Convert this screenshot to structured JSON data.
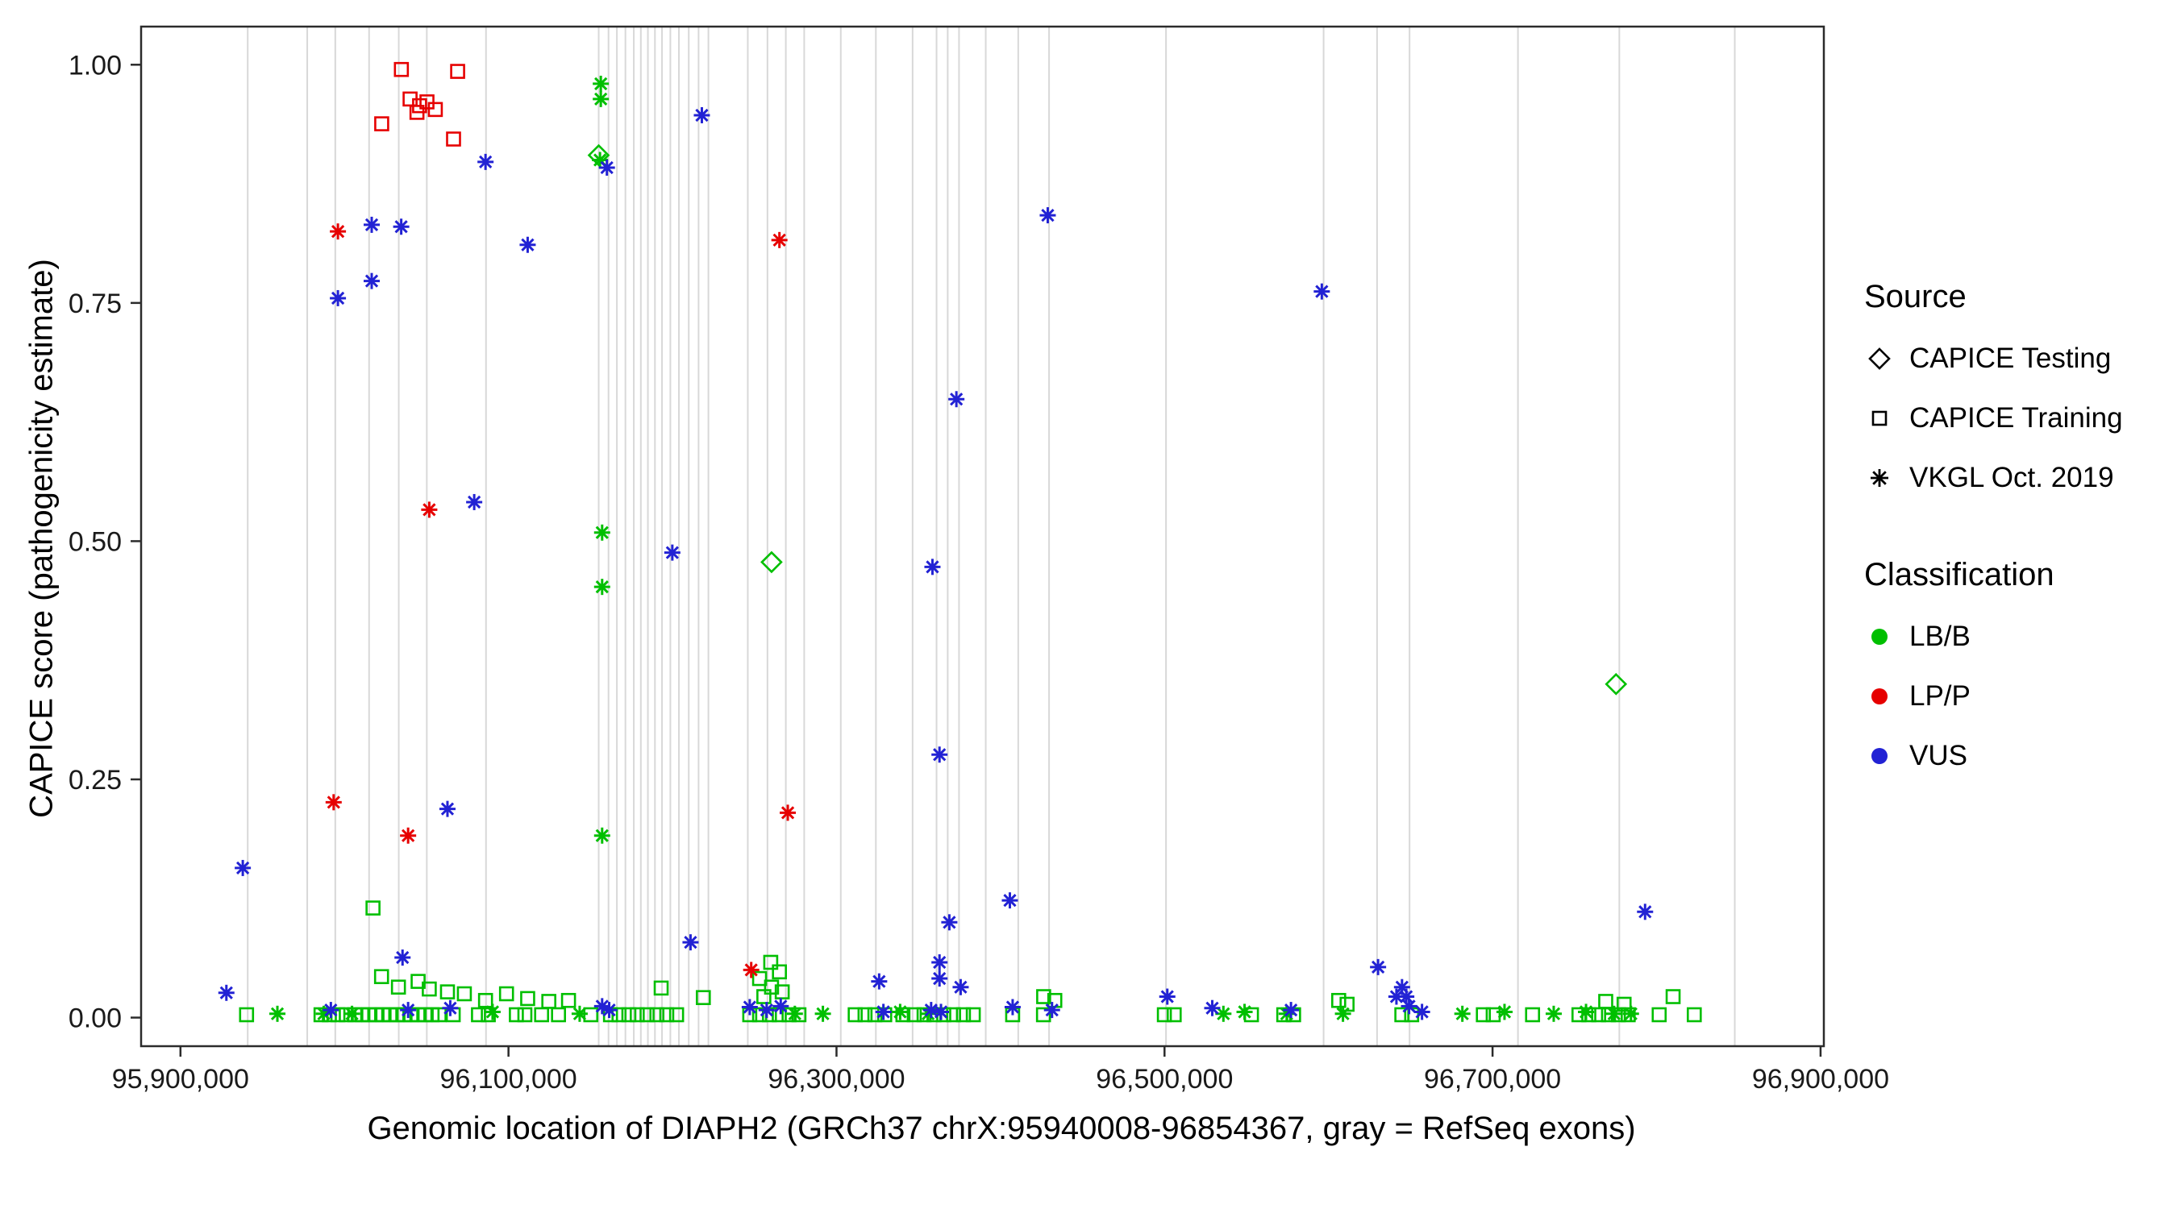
{
  "chart_data": {
    "type": "scatter",
    "title": "",
    "xlabel": "Genomic location of DIAPH2 (GRCh37 chrX:95940008-96854367, gray = RefSeq exons)",
    "ylabel": "CAPICE score (pathogenicity estimate)",
    "x_range": [
      95876000,
      96902000
    ],
    "y_range": [
      -0.03,
      1.04
    ],
    "x_ticks": [
      95900000,
      96100000,
      96300000,
      96500000,
      96700000,
      96900000
    ],
    "x_tick_labels": [
      "95,900,000",
      "96,100,000",
      "96,300,000",
      "96,500,000",
      "96,700,000",
      "96,900,000"
    ],
    "y_ticks": [
      0,
      0.25,
      0.5,
      0.75,
      1.0
    ],
    "y_tick_labels": [
      "0.00",
      "0.25",
      "0.50",
      "0.75",
      "1.00"
    ],
    "grid": false,
    "colors": {
      "exon": "#d8d8d8",
      "border": "#2b2b2b",
      "text": "#1a1a1a"
    },
    "exons": [
      95941000,
      95977300,
      95994400,
      96015000,
      96033100,
      96050200,
      96086300,
      96155000,
      96161000,
      96166100,
      96171300,
      96176400,
      96180700,
      96185000,
      96189300,
      96193600,
      96198700,
      96203900,
      96209900,
      96215900,
      96221900,
      96245900,
      96257900,
      96269100,
      96280300,
      96302600,
      96324000,
      96346400,
      96361000,
      96367800,
      96374700,
      96391000,
      96410800,
      96429600,
      96500900,
      96597000,
      96629600,
      96649400,
      96715500,
      96777300,
      96847700
    ],
    "source_legend": {
      "title": "Source",
      "items": [
        {
          "label": "CAPICE Testing",
          "marker": "diamond"
        },
        {
          "label": "CAPICE Training",
          "marker": "square"
        },
        {
          "label": "VKGL Oct. 2019",
          "marker": "asterisk"
        }
      ]
    },
    "classification_legend": {
      "title": "Classification",
      "items": [
        {
          "label": "LB/B",
          "color": "#00bf00"
        },
        {
          "label": "LP/P",
          "color": "#e60000"
        },
        {
          "label": "VUS",
          "color": "#2222d4"
        }
      ]
    },
    "series": [
      {
        "source": "CAPICE Testing",
        "classification": "LB/B",
        "marker": "diamond",
        "color": "#00bf00",
        "points": [
          [
            96155000,
            0.905
          ],
          [
            96260400,
            0.478
          ],
          [
            96775300,
            0.35
          ]
        ]
      },
      {
        "source": "CAPICE Training",
        "classification": "LP/P",
        "marker": "square",
        "color": "#e60000",
        "points": [
          [
            96022700,
            0.938
          ],
          [
            96034700,
            0.995
          ],
          [
            96040000,
            0.964
          ],
          [
            96044200,
            0.95
          ],
          [
            96045800,
            0.957
          ],
          [
            96050300,
            0.961
          ],
          [
            96055400,
            0.953
          ],
          [
            96066500,
            0.922
          ],
          [
            96069000,
            0.993
          ]
        ]
      },
      {
        "source": "CAPICE Training",
        "classification": "LB/B",
        "marker": "square",
        "color": "#00bf00",
        "points": [
          [
            96017400,
            0.115
          ],
          [
            96022600,
            0.043
          ],
          [
            96032900,
            0.032
          ],
          [
            96044900,
            0.038
          ],
          [
            96051700,
            0.03
          ],
          [
            96062800,
            0.027
          ],
          [
            96073100,
            0.025
          ],
          [
            96086000,
            0.018
          ],
          [
            96098800,
            0.025
          ],
          [
            96111700,
            0.02
          ],
          [
            96124600,
            0.017
          ],
          [
            96136600,
            0.018
          ],
          [
            96193100,
            0.031
          ],
          [
            96218800,
            0.021
          ],
          [
            96253100,
            0.041
          ],
          [
            96255700,
            0.022
          ],
          [
            96259900,
            0.058
          ],
          [
            96260400,
            0.032
          ],
          [
            96265200,
            0.048
          ],
          [
            96266900,
            0.027
          ],
          [
            96426300,
            0.022
          ],
          [
            96433100,
            0.018
          ],
          [
            96606200,
            0.018
          ],
          [
            96611300,
            0.014
          ],
          [
            96769000,
            0.017
          ],
          [
            96780200,
            0.014
          ],
          [
            96810100,
            0.022
          ],
          [
            95940300,
            0.003
          ],
          [
            95985700,
            0.003
          ],
          [
            95990800,
            0.003
          ],
          [
            95996000,
            0.003
          ],
          [
            96001100,
            0.003
          ],
          [
            96006300,
            0.003
          ],
          [
            96010600,
            0.003
          ],
          [
            96014800,
            0.003
          ],
          [
            96019100,
            0.003
          ],
          [
            96023400,
            0.003
          ],
          [
            96027700,
            0.003
          ],
          [
            96032000,
            0.003
          ],
          [
            96036300,
            0.003
          ],
          [
            96040500,
            0.003
          ],
          [
            96044800,
            0.003
          ],
          [
            96049100,
            0.003
          ],
          [
            96053400,
            0.003
          ],
          [
            96057700,
            0.003
          ],
          [
            96066300,
            0.003
          ],
          [
            96081700,
            0.003
          ],
          [
            96087700,
            0.003
          ],
          [
            96104800,
            0.003
          ],
          [
            96110000,
            0.003
          ],
          [
            96120200,
            0.003
          ],
          [
            96130500,
            0.003
          ],
          [
            96150200,
            0.003
          ],
          [
            96162200,
            0.003
          ],
          [
            96167400,
            0.003
          ],
          [
            96173400,
            0.003
          ],
          [
            96178500,
            0.003
          ],
          [
            96184500,
            0.003
          ],
          [
            96190500,
            0.003
          ],
          [
            96196500,
            0.003
          ],
          [
            96202500,
            0.003
          ],
          [
            96247100,
            0.003
          ],
          [
            96253100,
            0.003
          ],
          [
            96259100,
            0.003
          ],
          [
            96265100,
            0.003
          ],
          [
            96271100,
            0.003
          ],
          [
            96277100,
            0.003
          ],
          [
            96311400,
            0.003
          ],
          [
            96317400,
            0.003
          ],
          [
            96323400,
            0.003
          ],
          [
            96329400,
            0.003
          ],
          [
            96340500,
            0.003
          ],
          [
            96347400,
            0.003
          ],
          [
            96353400,
            0.003
          ],
          [
            96359400,
            0.003
          ],
          [
            96365400,
            0.003
          ],
          [
            96371400,
            0.003
          ],
          [
            96377400,
            0.003
          ],
          [
            96383400,
            0.003
          ],
          [
            96407400,
            0.003
          ],
          [
            96426200,
            0.003
          ],
          [
            96499900,
            0.003
          ],
          [
            96505900,
            0.003
          ],
          [
            96553000,
            0.003
          ],
          [
            96572700,
            0.003
          ],
          [
            96578700,
            0.003
          ],
          [
            96644700,
            0.003
          ],
          [
            96650700,
            0.003
          ],
          [
            96694400,
            0.003
          ],
          [
            96700400,
            0.003
          ],
          [
            96724400,
            0.003
          ],
          [
            96752700,
            0.003
          ],
          [
            96758700,
            0.003
          ],
          [
            96764700,
            0.003
          ],
          [
            96770700,
            0.003
          ],
          [
            96776700,
            0.003
          ],
          [
            96782700,
            0.003
          ],
          [
            96801600,
            0.003
          ],
          [
            96823000,
            0.003
          ]
        ]
      },
      {
        "source": "VKGL Oct. 2019",
        "classification": "LB/B",
        "marker": "asterisk",
        "color": "#00bf00",
        "points": [
          [
            96156300,
            0.98
          ],
          [
            96156300,
            0.964
          ],
          [
            96155800,
            0.9
          ],
          [
            96157100,
            0.509
          ],
          [
            96157100,
            0.452
          ],
          [
            96157100,
            0.191
          ],
          [
            95959100,
            0.004
          ],
          [
            95987400,
            0.004
          ],
          [
            96004600,
            0.004
          ],
          [
            96090300,
            0.006
          ],
          [
            96143400,
            0.004
          ],
          [
            96274600,
            0.004
          ],
          [
            96291700,
            0.004
          ],
          [
            96338800,
            0.006
          ],
          [
            96355900,
            0.004
          ],
          [
            96535900,
            0.004
          ],
          [
            96548800,
            0.006
          ],
          [
            96574500,
            0.004
          ],
          [
            96608800,
            0.004
          ],
          [
            96681600,
            0.004
          ],
          [
            96707300,
            0.006
          ],
          [
            96737300,
            0.004
          ],
          [
            96757000,
            0.006
          ],
          [
            96774100,
            0.004
          ],
          [
            96784400,
            0.004
          ]
        ]
      },
      {
        "source": "VKGL Oct. 2019",
        "classification": "LP/P",
        "marker": "asterisk",
        "color": "#e60000",
        "points": [
          [
            95993400,
            0.226
          ],
          [
            95996000,
            0.825
          ],
          [
            96038800,
            0.191
          ],
          [
            96051700,
            0.533
          ],
          [
            96248000,
            0.05
          ],
          [
            96265200,
            0.816
          ],
          [
            96270300,
            0.215
          ]
        ]
      },
      {
        "source": "VKGL Oct. 2019",
        "classification": "VUS",
        "marker": "asterisk",
        "color": "#2222d4",
        "points": [
          [
            95938000,
            0.157
          ],
          [
            95928000,
            0.026
          ],
          [
            95996000,
            0.755
          ],
          [
            96016600,
            0.773
          ],
          [
            96016600,
            0.832
          ],
          [
            96034600,
            0.83
          ],
          [
            96086000,
            0.898
          ],
          [
            96111700,
            0.811
          ],
          [
            96079100,
            0.541
          ],
          [
            96062800,
            0.219
          ],
          [
            96035400,
            0.063
          ],
          [
            96160000,
            0.892
          ],
          [
            96217900,
            0.947
          ],
          [
            96199900,
            0.488
          ],
          [
            96211000,
            0.079
          ],
          [
            96428800,
            0.842
          ],
          [
            96595900,
            0.762
          ],
          [
            96373100,
            0.649
          ],
          [
            96358500,
            0.473
          ],
          [
            96362800,
            0.276
          ],
          [
            96368800,
            0.1
          ],
          [
            96405700,
            0.123
          ],
          [
            96793000,
            0.111
          ],
          [
            96630200,
            0.053
          ],
          [
            96362800,
            0.058
          ],
          [
            96362800,
            0.041
          ],
          [
            96375700,
            0.032
          ],
          [
            96326000,
            0.038
          ],
          [
            96501700,
            0.022
          ],
          [
            96644800,
            0.032
          ],
          [
            96647400,
            0.022
          ],
          [
            96641400,
            0.022
          ],
          [
            95991700,
            0.008
          ],
          [
            96038800,
            0.008
          ],
          [
            96064500,
            0.01
          ],
          [
            96157100,
            0.012
          ],
          [
            96161400,
            0.008
          ],
          [
            96247100,
            0.011
          ],
          [
            96257400,
            0.008
          ],
          [
            96266000,
            0.012
          ],
          [
            96328600,
            0.006
          ],
          [
            96357700,
            0.008
          ],
          [
            96363700,
            0.006
          ],
          [
            96407400,
            0.011
          ],
          [
            96431400,
            0.008
          ],
          [
            96529100,
            0.01
          ],
          [
            96577100,
            0.008
          ],
          [
            96649100,
            0.012
          ],
          [
            96657000,
            0.006
          ]
        ]
      }
    ]
  }
}
